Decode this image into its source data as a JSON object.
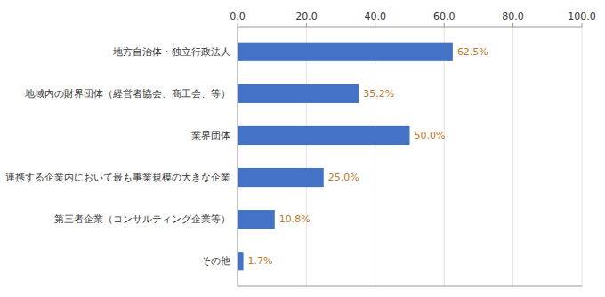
{
  "chart_data": {
    "type": "bar",
    "orientation": "horizontal",
    "categories": [
      "その他",
      "第三者企業（コンサルティング企業等）",
      "連携する企業内において最も事業規模の大きな企業",
      "業界団体",
      "地域内の財界団体（経営者協会、商工会、等）",
      "地方自治体・独立行政法人"
    ],
    "values": [
      1.7,
      10.8,
      25.0,
      50.0,
      35.2,
      62.5
    ],
    "value_labels": [
      "1.7%",
      "10.8%",
      "25.0%",
      "50.0%",
      "35.2%",
      "62.5%"
    ],
    "data_labels": true,
    "color": "#4472C4",
    "xlim": [
      0,
      100
    ],
    "xticks": [
      {
        "value": 0.0,
        "label": "0.0"
      },
      {
        "value": 20.0,
        "label": "20.0"
      },
      {
        "value": 40.0,
        "label": "40.0"
      },
      {
        "value": 60.0,
        "label": "60.0"
      },
      {
        "value": 80.0,
        "label": "80.0"
      },
      {
        "value": 100.0,
        "label": "100.0"
      }
    ],
    "grid": true
  }
}
